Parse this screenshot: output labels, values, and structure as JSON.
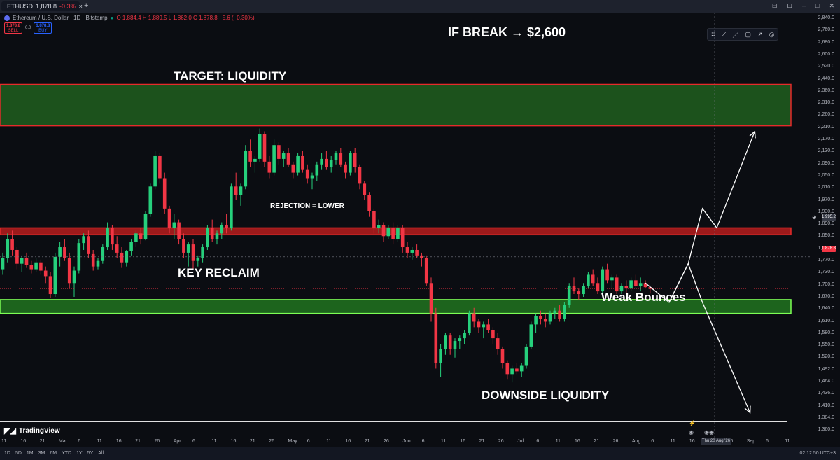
{
  "tab": {
    "symbol": "ETHUSD",
    "price": "1,878.8",
    "change": "-0.3%"
  },
  "window_controls": [
    "⊟",
    "⊡",
    "–",
    "□",
    "✕"
  ],
  "legend": {
    "name": "Ethereum / U.S. Dollar · 1D · Bitstamp",
    "ohlc": "O 1,884.4  H 1,889.5  L 1,862.0  C 1,878.8  −5.6 (−0.30%)"
  },
  "trade": {
    "sell_price": "1,878.8",
    "sell_label": "SELL",
    "spread": "0.0",
    "buy_price": "1,878.8",
    "buy_label": "BUY"
  },
  "toolbox_icons": [
    "⠿",
    "⟋",
    "／",
    "▢",
    "↗",
    "◎"
  ],
  "annotations": {
    "if_break": "IF BREAK → $2,600",
    "target": "TARGET: LIQUIDITY",
    "rejection": "REJECTION = LOWER",
    "key_reclaim": "KEY RECLAIM",
    "weak_bounces": "Weak Bounces",
    "downside": "DOWNSIDE LIQUIDITY"
  },
  "price_axis": [
    "2,840.0",
    "2,760.0",
    "2,680.0",
    "2,600.0",
    "2,520.0",
    "2,440.0",
    "2,360.0",
    "2,310.0",
    "2,260.0",
    "2,210.0",
    "2,170.0",
    "2,130.0",
    "2,090.0",
    "2,050.0",
    "2,010.0",
    "1,970.0",
    "1,930.0",
    "1,890.0",
    "1,850.0",
    "1,810.0",
    "1,770.0",
    "1,730.0",
    "1,700.0",
    "1,670.0",
    "1,640.0",
    "1,610.0",
    "1,580.0",
    "1,550.0",
    "1,520.0",
    "1,492.0",
    "1,464.0",
    "1,436.0",
    "1,410.0",
    "1,384.0",
    "1,360.0"
  ],
  "price_tags": {
    "crosshair": "1,995.2",
    "last": "1,878.8",
    "last_sub": "05:11:33"
  },
  "time_axis": [
    "11",
    "16",
    "21",
    "Mar",
    "6",
    "11",
    "16",
    "21",
    "26",
    "Apr",
    "6",
    "11",
    "16",
    "21",
    "26",
    "May",
    "6",
    "11",
    "16",
    "21",
    "26",
    "Jun",
    "6",
    "11",
    "16",
    "21",
    "26",
    "Jul",
    "6",
    "11",
    "16",
    "21",
    "26",
    "Aug",
    "6",
    "11",
    "16",
    "21",
    "26",
    "Sep",
    "6",
    "11"
  ],
  "time_tag": "Thu 20 Aug '26",
  "tv_logo": "TradingView",
  "ranges": [
    "1D",
    "5D",
    "1M",
    "3M",
    "6M",
    "YTD",
    "1Y",
    "5Y",
    "All"
  ],
  "clock": "02:12:50 UTC+3",
  "colors": {
    "up": "#26d07c",
    "down": "#f23645",
    "target_zone": "#1e5a1e",
    "target_border": "#e52b2b",
    "resistance_zone": "#b71d1d",
    "support_zone": "#1f6e1f",
    "support_border": "#7dff55"
  },
  "chart_data": {
    "type": "candlestick",
    "title": "",
    "xlabel": "",
    "ylabel": "",
    "ylim": [
      1340,
      2880
    ],
    "start_offset_days": 0,
    "candles": [
      [
        1950,
        2010,
        1930,
        1990
      ],
      [
        1990,
        2080,
        1975,
        2060
      ],
      [
        2060,
        2090,
        2000,
        2020
      ],
      [
        2020,
        2030,
        1950,
        1970
      ],
      [
        1970,
        2000,
        1940,
        1990
      ],
      [
        1990,
        2010,
        1955,
        1965
      ],
      [
        1965,
        1980,
        1935,
        1950
      ],
      [
        1950,
        1990,
        1940,
        1975
      ],
      [
        1975,
        1985,
        1930,
        1945
      ],
      [
        1945,
        1960,
        1900,
        1925
      ],
      [
        1925,
        1940,
        1845,
        1860
      ],
      [
        1860,
        2010,
        1850,
        1995
      ],
      [
        1995,
        2050,
        1960,
        2030
      ],
      [
        2030,
        2060,
        1980,
        1990
      ],
      [
        1990,
        2010,
        1880,
        1900
      ],
      [
        1900,
        1960,
        1850,
        1945
      ],
      [
        1945,
        2060,
        1935,
        2045
      ],
      [
        2045,
        2080,
        2020,
        2070
      ],
      [
        2070,
        2090,
        1990,
        2005
      ],
      [
        2005,
        2020,
        1945,
        1960
      ],
      [
        1960,
        1990,
        1950,
        1980
      ],
      [
        1980,
        2040,
        1970,
        2030
      ],
      [
        2030,
        2120,
        2020,
        2100
      ],
      [
        2100,
        2110,
        2020,
        2040
      ],
      [
        2040,
        2070,
        1990,
        2010
      ],
      [
        2010,
        2030,
        1955,
        1975
      ],
      [
        1975,
        2020,
        1960,
        2015
      ],
      [
        2015,
        2060,
        2000,
        2050
      ],
      [
        2050,
        2090,
        2030,
        2080
      ],
      [
        2080,
        2100,
        2040,
        2060
      ],
      [
        2060,
        2160,
        2055,
        2150
      ],
      [
        2150,
        2260,
        2140,
        2250
      ],
      [
        2250,
        2380,
        2240,
        2360
      ],
      [
        2360,
        2370,
        2260,
        2280
      ],
      [
        2280,
        2300,
        2150,
        2170
      ],
      [
        2170,
        2180,
        2080,
        2100
      ],
      [
        2100,
        2150,
        2060,
        2120
      ],
      [
        2120,
        2130,
        2040,
        2060
      ],
      [
        2060,
        2080,
        1990,
        2010
      ],
      [
        2010,
        2050,
        1960,
        2040
      ],
      [
        2040,
        2060,
        1950,
        1980
      ],
      [
        1980,
        2000,
        1960,
        1990
      ],
      [
        1990,
        2040,
        1975,
        2030
      ],
      [
        2030,
        2110,
        2020,
        2100
      ],
      [
        2100,
        2130,
        2050,
        2060
      ],
      [
        2060,
        2090,
        2040,
        2080
      ],
      [
        2080,
        2120,
        2060,
        2110
      ],
      [
        2110,
        2150,
        2080,
        2100
      ],
      [
        2100,
        2260,
        2090,
        2250
      ],
      [
        2250,
        2300,
        2200,
        2220
      ],
      [
        2220,
        2260,
        2180,
        2250
      ],
      [
        2250,
        2400,
        2240,
        2380
      ],
      [
        2380,
        2420,
        2320,
        2340
      ],
      [
        2340,
        2360,
        2300,
        2350
      ],
      [
        2350,
        2460,
        2340,
        2440
      ],
      [
        2440,
        2450,
        2320,
        2340
      ],
      [
        2340,
        2360,
        2280,
        2300
      ],
      [
        2300,
        2420,
        2290,
        2400
      ],
      [
        2400,
        2410,
        2330,
        2350
      ],
      [
        2350,
        2380,
        2320,
        2370
      ],
      [
        2370,
        2390,
        2320,
        2330
      ],
      [
        2330,
        2340,
        2280,
        2300
      ],
      [
        2300,
        2370,
        2290,
        2360
      ],
      [
        2360,
        2380,
        2300,
        2310
      ],
      [
        2310,
        2330,
        2260,
        2280
      ],
      [
        2280,
        2300,
        2240,
        2290
      ],
      [
        2290,
        2340,
        2270,
        2330
      ],
      [
        2330,
        2370,
        2310,
        2350
      ],
      [
        2350,
        2380,
        2310,
        2320
      ],
      [
        2320,
        2360,
        2300,
        2345
      ],
      [
        2345,
        2380,
        2330,
        2370
      ],
      [
        2370,
        2390,
        2320,
        2330
      ],
      [
        2330,
        2340,
        2280,
        2300
      ],
      [
        2300,
        2380,
        2290,
        2370
      ],
      [
        2370,
        2390,
        2300,
        2320
      ],
      [
        2320,
        2330,
        2240,
        2260
      ],
      [
        2260,
        2270,
        2200,
        2220
      ],
      [
        2220,
        2230,
        2140,
        2160
      ],
      [
        2160,
        2170,
        2080,
        2100
      ],
      [
        2100,
        2130,
        2080,
        2110
      ],
      [
        2110,
        2120,
        2050,
        2070
      ],
      [
        2070,
        2110,
        2060,
        2100
      ],
      [
        2100,
        2120,
        2040,
        2060
      ],
      [
        2060,
        2110,
        2050,
        2100
      ],
      [
        2100,
        2110,
        2010,
        2030
      ],
      [
        2030,
        2050,
        1990,
        2010
      ],
      [
        2010,
        2030,
        1985,
        2020
      ],
      [
        2020,
        2040,
        1990,
        2000
      ],
      [
        2000,
        2010,
        1960,
        1990
      ],
      [
        1990,
        2000,
        1890,
        1900
      ],
      [
        1900,
        1920,
        1760,
        1790
      ],
      [
        1790,
        1810,
        1590,
        1610
      ],
      [
        1610,
        1680,
        1560,
        1660
      ],
      [
        1660,
        1720,
        1640,
        1710
      ],
      [
        1710,
        1720,
        1640,
        1660
      ],
      [
        1660,
        1700,
        1630,
        1690
      ],
      [
        1690,
        1710,
        1660,
        1700
      ],
      [
        1700,
        1730,
        1680,
        1720
      ],
      [
        1720,
        1800,
        1710,
        1790
      ],
      [
        1790,
        1810,
        1740,
        1760
      ],
      [
        1760,
        1770,
        1720,
        1740
      ],
      [
        1740,
        1760,
        1700,
        1750
      ],
      [
        1750,
        1770,
        1720,
        1730
      ],
      [
        1730,
        1740,
        1680,
        1700
      ],
      [
        1700,
        1720,
        1640,
        1660
      ],
      [
        1660,
        1670,
        1590,
        1610
      ],
      [
        1610,
        1620,
        1550,
        1570
      ],
      [
        1570,
        1600,
        1540,
        1590
      ],
      [
        1590,
        1610,
        1570,
        1580
      ],
      [
        1580,
        1610,
        1560,
        1600
      ],
      [
        1600,
        1680,
        1590,
        1670
      ],
      [
        1670,
        1760,
        1660,
        1750
      ],
      [
        1750,
        1790,
        1720,
        1780
      ],
      [
        1780,
        1800,
        1750,
        1770
      ],
      [
        1770,
        1790,
        1740,
        1760
      ],
      [
        1760,
        1800,
        1750,
        1790
      ],
      [
        1790,
        1810,
        1770,
        1800
      ],
      [
        1800,
        1820,
        1760,
        1770
      ],
      [
        1770,
        1830,
        1760,
        1820
      ],
      [
        1820,
        1900,
        1810,
        1890
      ],
      [
        1890,
        1920,
        1860,
        1870
      ],
      [
        1870,
        1880,
        1840,
        1860
      ],
      [
        1860,
        1900,
        1850,
        1890
      ],
      [
        1890,
        1940,
        1880,
        1930
      ],
      [
        1930,
        1950,
        1890,
        1900
      ],
      [
        1900,
        1920,
        1860,
        1870
      ],
      [
        1870,
        1960,
        1860,
        1950
      ],
      [
        1950,
        1970,
        1900,
        1910
      ],
      [
        1910,
        1930,
        1880,
        1920
      ],
      [
        1920,
        1930,
        1860,
        1870
      ],
      [
        1870,
        1900,
        1860,
        1890
      ],
      [
        1890,
        1910,
        1860,
        1880
      ],
      [
        1880,
        1920,
        1870,
        1910
      ],
      [
        1910,
        1930,
        1880,
        1890
      ],
      [
        1890,
        1920,
        1870,
        1900
      ],
      [
        1900,
        1910,
        1880,
        1885
      ],
      [
        1885,
        1889,
        1862,
        1879
      ]
    ],
    "zones": [
      {
        "name": "target",
        "top": 2620,
        "bottom": 2470,
        "fill": "target_zone",
        "border": "target_border"
      },
      {
        "name": "resistance",
        "top": 2100,
        "bottom": 2075,
        "fill": "resistance_zone",
        "border": "target_border"
      },
      {
        "name": "support",
        "top": 1840,
        "bottom": 1790,
        "fill": "support_zone",
        "border": "support_border"
      }
    ],
    "projection_up": [
      [
        135,
        1900
      ],
      [
        140,
        1830
      ],
      [
        144,
        1970
      ],
      [
        147,
        2170
      ],
      [
        150,
        2100
      ],
      [
        158,
        2450
      ]
    ],
    "projection_down": [
      [
        140,
        1830
      ],
      [
        144,
        1970
      ],
      [
        147,
        1830
      ],
      [
        157,
        1430
      ]
    ],
    "base_line": 1398
  }
}
